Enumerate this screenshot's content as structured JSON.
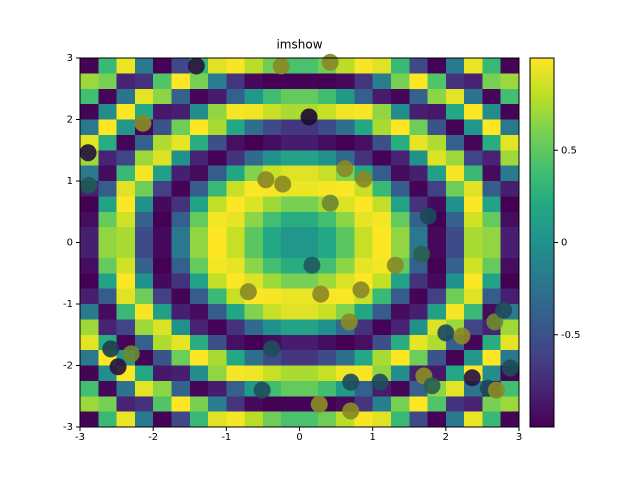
{
  "chart_data": {
    "type": "imshow",
    "title": "imshow",
    "xlim": [
      -3,
      3
    ],
    "ylim": [
      -3,
      3
    ],
    "xticks": [
      -3,
      -2,
      -1,
      0,
      1,
      2,
      3
    ],
    "yticks": [
      -3,
      -2,
      -1,
      0,
      1,
      2,
      3
    ],
    "clim": [
      -1,
      1
    ],
    "colorbar_ticks": [
      -0.5,
      0,
      0.5
    ],
    "colormap": "viridis",
    "z": [
      [
        -0.98,
        0.34,
        0.94,
        -0.19,
        -0.99,
        -0.56,
        0.34,
        0.91,
        0.98,
        0.79,
        0.56,
        0.42,
        0.42,
        0.56,
        0.79,
        0.98,
        0.91,
        0.34,
        -0.56,
        -0.99,
        -0.19,
        0.94,
        0.34,
        -0.98
      ],
      [
        0.7,
        0.59,
        -0.81,
        -0.71,
        0.45,
        1.0,
        0.59,
        -0.15,
        -0.7,
        -0.95,
        -1.0,
        -0.99,
        -0.99,
        -1.0,
        -0.95,
        -0.7,
        -0.15,
        0.59,
        1.0,
        0.45,
        -0.71,
        -0.81,
        0.59,
        0.7
      ],
      [
        0.39,
        -0.97,
        -0.24,
        0.92,
        0.65,
        -0.38,
        -0.97,
        -0.85,
        -0.39,
        0.07,
        0.38,
        0.52,
        0.52,
        0.38,
        0.07,
        -0.39,
        -0.85,
        -0.97,
        -0.38,
        0.65,
        0.92,
        -0.24,
        -0.97,
        0.39
      ],
      [
        -0.98,
        -0.04,
        1.0,
        0.2,
        -0.87,
        -0.83,
        -0.04,
        0.67,
        0.98,
        0.96,
        0.83,
        0.74,
        0.74,
        0.83,
        0.96,
        0.98,
        0.67,
        -0.04,
        -0.83,
        -0.87,
        0.2,
        1.0,
        -0.04,
        -0.98
      ],
      [
        -0.2,
        1.0,
        0.04,
        -0.98,
        -0.49,
        0.55,
        1.0,
        0.74,
        0.2,
        -0.27,
        -0.55,
        -0.68,
        -0.68,
        -0.55,
        -0.27,
        0.2,
        0.74,
        1.0,
        0.55,
        -0.49,
        -0.98,
        0.04,
        1.0,
        -0.2
      ],
      [
        0.92,
        0.24,
        -0.97,
        -0.39,
        0.76,
        0.93,
        0.24,
        -0.52,
        -0.92,
        -1.0,
        -0.93,
        -0.85,
        -0.85,
        -0.93,
        -1.0,
        -0.92,
        -0.52,
        0.24,
        0.93,
        0.76,
        -0.39,
        -0.97,
        0.24,
        0.92
      ],
      [
        0.71,
        -0.81,
        -0.59,
        0.7,
        0.89,
        0.0,
        -0.81,
        -0.99,
        -0.71,
        -0.31,
        0.0,
        0.15,
        0.15,
        0.0,
        -0.31,
        -0.71,
        -0.99,
        -0.81,
        0.0,
        0.89,
        0.7,
        -0.59,
        -0.81,
        0.71
      ],
      [
        -0.19,
        -0.94,
        0.34,
        0.98,
        0.12,
        -0.83,
        -0.94,
        -0.42,
        0.19,
        0.62,
        0.83,
        0.91,
        0.91,
        0.83,
        0.62,
        0.19,
        -0.42,
        -0.94,
        -0.83,
        0.12,
        0.98,
        0.34,
        -0.94,
        -0.19
      ],
      [
        -0.83,
        -0.42,
        0.91,
        0.56,
        -0.62,
        -0.98,
        -0.42,
        0.34,
        0.83,
        0.99,
        0.98,
        0.94,
        0.94,
        0.98,
        0.99,
        0.83,
        0.34,
        -0.42,
        -0.98,
        -0.62,
        0.56,
        0.91,
        -0.42,
        -0.83
      ],
      [
        -1.0,
        0.15,
        0.99,
        0.0,
        -0.95,
        -0.71,
        0.15,
        0.81,
        1.0,
        0.89,
        0.71,
        0.59,
        0.59,
        0.71,
        0.89,
        1.0,
        0.81,
        0.15,
        -0.71,
        -0.95,
        0.0,
        0.99,
        0.15,
        -1.0
      ],
      [
        -0.93,
        0.52,
        0.86,
        -0.38,
        -1.0,
        -0.39,
        0.52,
        0.97,
        0.93,
        0.65,
        0.39,
        0.24,
        0.24,
        0.39,
        0.65,
        0.93,
        0.97,
        0.52,
        -0.39,
        -1.0,
        -0.38,
        0.86,
        0.52,
        -0.93
      ],
      [
        -0.83,
        0.67,
        0.74,
        -0.55,
        -0.96,
        -0.2,
        0.67,
        1.0,
        0.83,
        0.49,
        0.2,
        0.04,
        0.04,
        0.2,
        0.49,
        0.83,
        1.0,
        0.67,
        -0.2,
        -0.96,
        -0.55,
        0.74,
        0.67,
        -0.83
      ],
      [
        -0.83,
        0.67,
        0.74,
        -0.55,
        -0.96,
        -0.2,
        0.67,
        1.0,
        0.83,
        0.49,
        0.2,
        0.04,
        0.04,
        0.2,
        0.49,
        0.83,
        1.0,
        0.67,
        -0.2,
        -0.96,
        -0.55,
        0.74,
        0.67,
        -0.83
      ],
      [
        -0.93,
        0.52,
        0.86,
        -0.38,
        -1.0,
        -0.39,
        0.52,
        0.97,
        0.93,
        0.65,
        0.39,
        0.24,
        0.24,
        0.39,
        0.65,
        0.93,
        0.97,
        0.52,
        -0.39,
        -1.0,
        -0.38,
        0.86,
        0.52,
        -0.93
      ],
      [
        -1.0,
        0.15,
        0.99,
        0.0,
        -0.95,
        -0.71,
        0.15,
        0.81,
        1.0,
        0.89,
        0.71,
        0.59,
        0.59,
        0.71,
        0.89,
        1.0,
        0.81,
        0.15,
        -0.71,
        -0.95,
        0.0,
        0.99,
        0.15,
        -1.0
      ],
      [
        -0.83,
        -0.42,
        0.91,
        0.56,
        -0.62,
        -0.98,
        -0.42,
        0.34,
        0.83,
        0.99,
        0.98,
        0.94,
        0.94,
        0.98,
        0.99,
        0.83,
        0.34,
        -0.42,
        -0.98,
        -0.62,
        0.56,
        0.91,
        -0.42,
        -0.83
      ],
      [
        -0.19,
        -0.94,
        0.34,
        0.98,
        0.12,
        -0.83,
        -0.94,
        -0.42,
        0.19,
        0.62,
        0.83,
        0.91,
        0.91,
        0.83,
        0.62,
        0.19,
        -0.42,
        -0.94,
        -0.83,
        0.12,
        0.98,
        0.34,
        -0.94,
        -0.19
      ],
      [
        0.71,
        -0.81,
        -0.59,
        0.7,
        0.89,
        0.0,
        -0.81,
        -0.99,
        -0.71,
        -0.31,
        0.0,
        0.15,
        0.15,
        0.0,
        -0.31,
        -0.71,
        -0.99,
        -0.81,
        0.0,
        0.89,
        0.7,
        -0.59,
        -0.81,
        0.71
      ],
      [
        0.92,
        0.24,
        -0.97,
        -0.39,
        0.76,
        0.93,
        0.24,
        -0.52,
        -0.92,
        -1.0,
        -0.93,
        -0.85,
        -0.85,
        -0.93,
        -1.0,
        -0.92,
        -0.52,
        0.24,
        0.93,
        0.76,
        -0.39,
        -0.97,
        0.24,
        0.92
      ],
      [
        -0.2,
        1.0,
        0.04,
        -0.98,
        -0.49,
        0.55,
        1.0,
        0.74,
        0.2,
        -0.27,
        -0.55,
        -0.68,
        -0.68,
        -0.55,
        -0.27,
        0.2,
        0.74,
        1.0,
        0.55,
        -0.49,
        -0.98,
        0.04,
        1.0,
        -0.2
      ],
      [
        -0.98,
        -0.04,
        1.0,
        0.2,
        -0.87,
        -0.83,
        -0.04,
        0.67,
        0.98,
        0.96,
        0.83,
        0.74,
        0.74,
        0.83,
        0.96,
        0.98,
        0.67,
        -0.04,
        -0.83,
        -0.87,
        0.2,
        1.0,
        -0.04,
        -0.98
      ],
      [
        0.39,
        -0.97,
        -0.24,
        0.92,
        0.65,
        -0.38,
        -0.97,
        -0.85,
        -0.39,
        0.07,
        0.38,
        0.52,
        0.52,
        0.38,
        0.07,
        -0.39,
        -0.85,
        -0.97,
        -0.38,
        0.65,
        0.92,
        -0.24,
        -0.97,
        0.39
      ],
      [
        0.7,
        0.59,
        -0.81,
        -0.71,
        0.45,
        1.0,
        0.59,
        -0.15,
        -0.7,
        -0.95,
        -1.0,
        -0.99,
        -0.99,
        -1.0,
        -0.95,
        -0.7,
        -0.15,
        0.59,
        1.0,
        0.45,
        -0.71,
        -0.81,
        0.59,
        0.7
      ],
      [
        -0.98,
        0.34,
        0.94,
        -0.19,
        -0.99,
        -0.56,
        0.34,
        0.91,
        0.98,
        0.79,
        0.56,
        0.42,
        0.42,
        0.56,
        0.79,
        0.98,
        0.91,
        0.34,
        -0.56,
        -0.99,
        -0.19,
        0.94,
        0.34,
        -0.98
      ]
    ],
    "points": {
      "x": [
        -1.41,
        -0.25,
        0.42,
        -2.14,
        0.13,
        -2.89,
        -2.88,
        -0.46,
        -0.23,
        0.62,
        0.88,
        0.42,
        1.76,
        0.17,
        1.31,
        1.67,
        -0.7,
        0.29,
        0.84,
        0.68,
        2.0,
        2.22,
        2.67,
        2.79,
        -2.58,
        -2.3,
        -2.48,
        -0.38,
        -0.51,
        0.7,
        1.1,
        1.7,
        1.81,
        2.36,
        2.58,
        2.69,
        2.88,
        0.27,
        0.7
      ],
      "y": [
        2.87,
        2.87,
        2.93,
        1.94,
        2.04,
        1.46,
        0.93,
        1.02,
        0.95,
        1.2,
        1.03,
        0.64,
        0.43,
        -0.37,
        -0.37,
        -0.19,
        -0.8,
        -0.84,
        -0.77,
        -1.29,
        -1.47,
        -1.52,
        -1.29,
        -1.1,
        -1.73,
        -1.81,
        -2.02,
        -1.73,
        -2.4,
        -2.27,
        -2.27,
        -2.17,
        -2.33,
        -2.2,
        -2.37,
        -2.4,
        -2.04,
        -2.63,
        -2.74
      ],
      "colors": [
        "#2a1540",
        "#8a8a26",
        "#8a8a26",
        "#8a8a26",
        "#1e0c32",
        "#26153e",
        "#1f5a58",
        "#8a8a26",
        "#8a8a26",
        "#8a8a26",
        "#8a8a26",
        "#6e8a30",
        "#1a4a5a",
        "#1f5a5e",
        "#8a8a26",
        "#2a6050",
        "#8a8a26",
        "#8a8a26",
        "#8a8a26",
        "#8a8a26",
        "#1e4a60",
        "#8a8a26",
        "#6e8a30",
        "#1e4d5c",
        "#1b4050",
        "#6a8a30",
        "#2a1540",
        "#1e4d5c",
        "#1e4d5c",
        "#1e4d5c",
        "#1e4d5c",
        "#8a8a26",
        "#2a6050",
        "#2a1540",
        "#1e4d5c",
        "#8a8a26",
        "#1e4d5c",
        "#8a8a26",
        "#8a8a26"
      ]
    }
  }
}
